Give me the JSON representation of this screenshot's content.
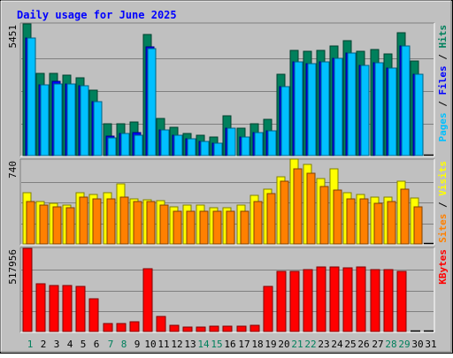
{
  "title": "Daily usage for June 2025",
  "colors": {
    "background": "#c0c0c0",
    "title": "#0000ff",
    "hits": "#00805c",
    "files": "#0000ff",
    "pages": "#00c0ff",
    "visits": "#ffff00",
    "sites": "#ff8000",
    "kbytes": "#ff0000",
    "weekend_day": "#00805c",
    "weekday": "#000000"
  },
  "chart_data": [
    {
      "type": "bar",
      "name": "hits-files-pages",
      "max_label": "5451",
      "ylim": [
        0,
        5451
      ],
      "legend": [
        {
          "key": "hits",
          "label": "Hits"
        },
        {
          "key": "files",
          "label": "Files"
        },
        {
          "key": "pages",
          "label": "Pages"
        }
      ],
      "series": [
        {
          "name": "Hits",
          "values": [
            5451,
            3410,
            3420,
            3320,
            3220,
            2690,
            1300,
            1300,
            1390,
            5000,
            1550,
            1170,
            920,
            840,
            780,
            1660,
            1140,
            1300,
            1490,
            3370,
            4350,
            4330,
            4370,
            4540,
            4750,
            4300,
            4390,
            4220,
            5080,
            3920,
            0
          ]
        },
        {
          "name": "Files",
          "values": [
            4870,
            2920,
            3080,
            2950,
            2880,
            2220,
            800,
            920,
            950,
            4500,
            1060,
            840,
            700,
            600,
            530,
            1140,
            780,
            950,
            1010,
            2860,
            3870,
            3790,
            3890,
            4030,
            4230,
            3740,
            3830,
            3640,
            4550,
            3370,
            0
          ]
        },
        {
          "name": "Pages",
          "values": [
            4870,
            2920,
            2980,
            2950,
            2880,
            2220,
            720,
            920,
            830,
            4430,
            1060,
            840,
            700,
            600,
            530,
            1140,
            780,
            950,
            1010,
            2860,
            3870,
            3790,
            3890,
            4030,
            4230,
            3740,
            3830,
            3640,
            4550,
            3370,
            0
          ]
        }
      ]
    },
    {
      "type": "bar",
      "name": "visits-sites",
      "max_label": "740",
      "ylim": [
        0,
        740
      ],
      "legend": [
        {
          "key": "visits",
          "label": "Visits"
        },
        {
          "key": "sites",
          "label": "Sites"
        }
      ],
      "series": [
        {
          "name": "Visits",
          "values": [
            450,
            370,
            360,
            340,
            450,
            440,
            450,
            530,
            400,
            390,
            380,
            330,
            340,
            340,
            320,
            320,
            340,
            430,
            480,
            595,
            745,
            700,
            580,
            665,
            455,
            435,
            415,
            410,
            555,
            405,
            0
          ]
        },
        {
          "name": "Sites",
          "values": [
            375,
            345,
            325,
            320,
            410,
            400,
            395,
            410,
            370,
            370,
            340,
            285,
            285,
            290,
            285,
            285,
            290,
            370,
            445,
            550,
            665,
            620,
            505,
            475,
            395,
            395,
            355,
            375,
            485,
            325,
            0
          ]
        }
      ]
    },
    {
      "type": "bar",
      "name": "kbytes",
      "max_label": "517956",
      "ylim": [
        0,
        517956
      ],
      "legend": [
        {
          "key": "kbytes",
          "label": "KBytes"
        }
      ],
      "series": [
        {
          "name": "KBytes",
          "values": [
            517956,
            295000,
            285000,
            285000,
            282000,
            203000,
            52000,
            52000,
            58000,
            393000,
            93000,
            37000,
            30000,
            30000,
            33000,
            33000,
            33000,
            40000,
            283000,
            373000,
            373000,
            385000,
            400000,
            400000,
            395000,
            400000,
            385000,
            385000,
            372000,
            0,
            0
          ]
        }
      ]
    }
  ],
  "days": [
    "1",
    "2",
    "3",
    "4",
    "5",
    "6",
    "7",
    "8",
    "9",
    "10",
    "11",
    "12",
    "13",
    "14",
    "15",
    "16",
    "17",
    "18",
    "19",
    "20",
    "21",
    "22",
    "23",
    "24",
    "25",
    "26",
    "27",
    "28",
    "29",
    "30",
    "31"
  ],
  "weekend_days": [
    1,
    7,
    8,
    14,
    15,
    21,
    22,
    28,
    29
  ]
}
